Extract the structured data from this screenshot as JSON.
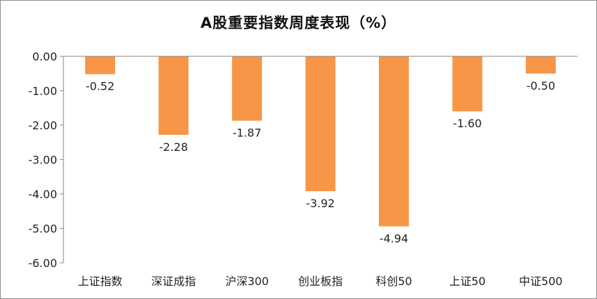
{
  "chart_data": {
    "type": "bar",
    "title": "A股重要指数周度表现（%）",
    "xlabel": "",
    "ylabel": "",
    "categories": [
      "上证指数",
      "深证成指",
      "沪深300",
      "创业板指",
      "科创50",
      "上证50",
      "中证500"
    ],
    "values": [
      -0.52,
      -2.28,
      -1.87,
      -3.92,
      -4.94,
      -1.6,
      -0.5
    ],
    "value_labels": [
      "-0.52",
      "-2.28",
      "-1.87",
      "-3.92",
      "-4.94",
      "-1.60",
      "-0.50"
    ],
    "ylim": [
      -6,
      0
    ],
    "yticks": [
      0,
      -1,
      -2,
      -3,
      -4,
      -5,
      -6
    ],
    "ytick_labels": [
      "0.00",
      "-1.00",
      "-2.00",
      "-3.00",
      "-4.00",
      "-5.00",
      "-6.00"
    ],
    "grid": false,
    "legend": "none",
    "bar_color": "#F79646",
    "axis_color": "#868686"
  }
}
